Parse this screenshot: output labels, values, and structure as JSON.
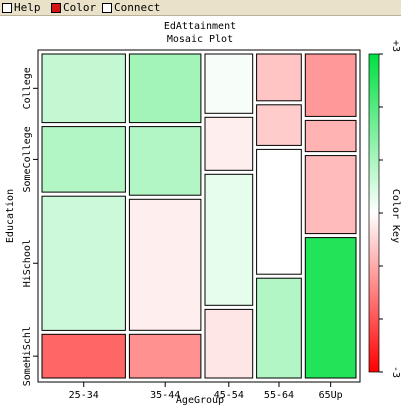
{
  "menu": {
    "help_label": "Help",
    "color_label": "Color",
    "connect_label": "Connect",
    "help_checked": false,
    "color_checked": true,
    "connect_checked": false
  },
  "chart_data": {
    "type": "mosaic",
    "title": "EdAttainment",
    "subtitle": "Mosaic Plot",
    "xlabel": "AgeGroup",
    "ylabel": "Education",
    "x_categories": [
      "25-34",
      "35-44",
      "45-54",
      "55-64",
      "65Up"
    ],
    "y_categories": [
      "SomeHiSchl",
      "HiSchool",
      "SomeCollege",
      "College"
    ],
    "column_widths": [
      0.28,
      0.24,
      0.16,
      0.15,
      0.17
    ],
    "cell_heights": [
      [
        0.14,
        0.43,
        0.21,
        0.22
      ],
      [
        0.14,
        0.42,
        0.22,
        0.22
      ],
      [
        0.22,
        0.42,
        0.17,
        0.19
      ],
      [
        0.32,
        0.4,
        0.13,
        0.15
      ],
      [
        0.45,
        0.25,
        0.1,
        0.2
      ]
    ],
    "residuals": [
      [
        -1.8,
        0.6,
        0.9,
        0.7
      ],
      [
        -1.3,
        -0.2,
        0.9,
        1.1
      ],
      [
        -0.3,
        0.3,
        -0.2,
        0.1
      ],
      [
        0.9,
        0.0,
        -0.6,
        -0.7
      ],
      [
        2.6,
        -0.8,
        -0.9,
        -1.2
      ]
    ],
    "color_key": {
      "label": "Color Key",
      "min": -3,
      "max": 3,
      "min_label": "-3",
      "max_label": "+3",
      "negative_color": "#ff0000",
      "positive_color": "#00e040"
    }
  }
}
